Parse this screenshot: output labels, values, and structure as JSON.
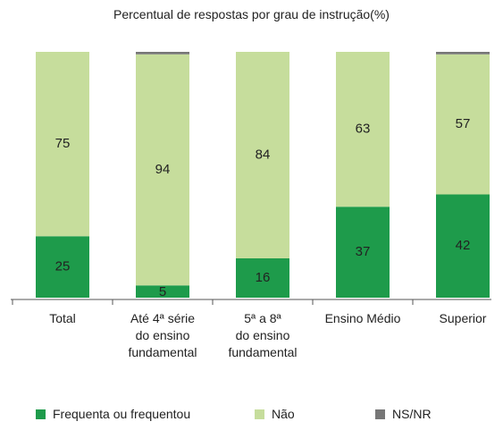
{
  "chart_data": {
    "type": "stacked_bar",
    "title": "Percentual de respostas por grau de instrução(%)",
    "categories": [
      "Total",
      "Até 4ª série\ndo ensino\nfundamental",
      "5ª a 8ª\ndo ensino\nfundamental",
      "Ensino Médio",
      "Superior"
    ],
    "series": [
      {
        "name": "Frequenta ou frequentou",
        "color": "#1e9b4b",
        "values": [
          25,
          5,
          16,
          37,
          42
        ]
      },
      {
        "name": "Não",
        "color": "#c6dd9c",
        "values": [
          75,
          94,
          84,
          63,
          57
        ]
      },
      {
        "name": "NS/NR",
        "color": "#777777",
        "values": [
          0,
          1,
          0,
          0,
          1
        ]
      }
    ],
    "ylim": [
      0,
      100
    ],
    "legend": "bottom"
  }
}
